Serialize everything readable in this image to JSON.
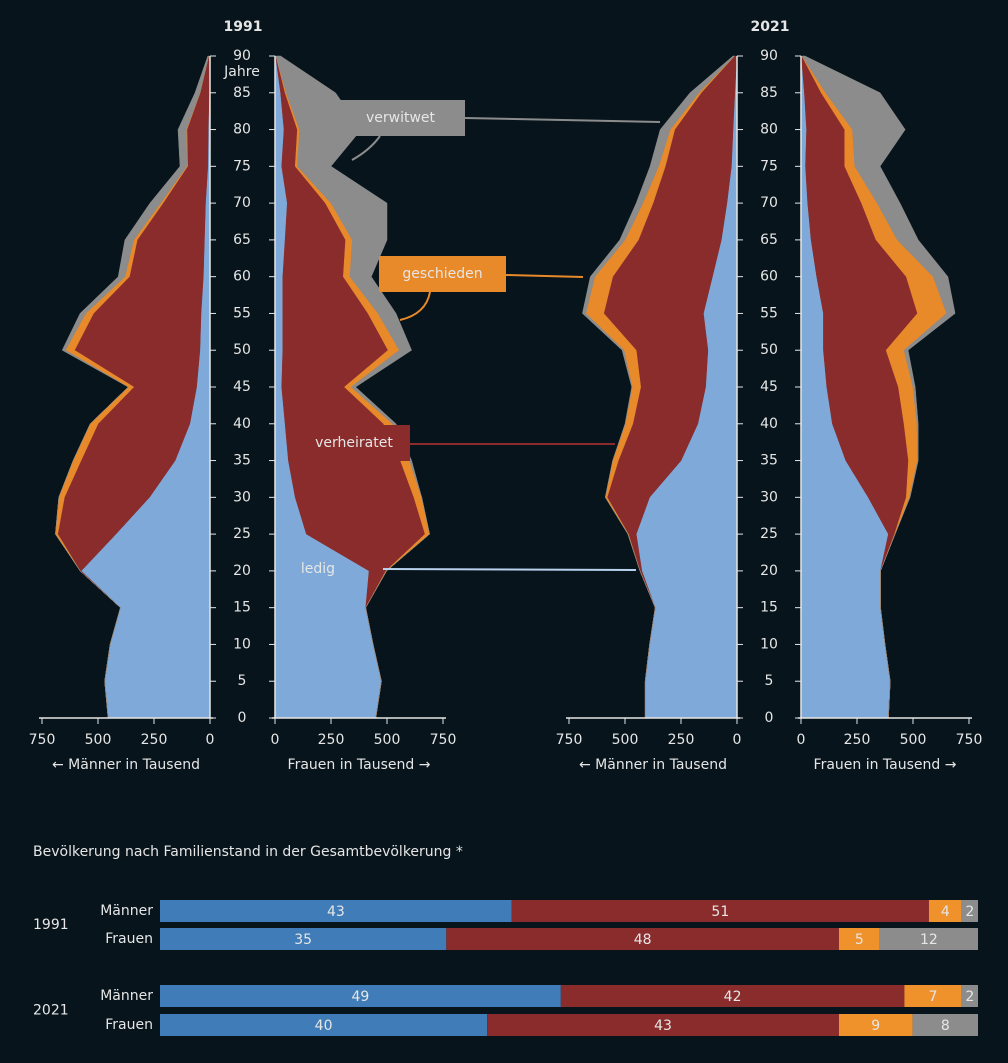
{
  "chart_data": [
    {
      "type": "pyramid",
      "title": "1991",
      "ylabel": "Jahre",
      "ages": [
        0,
        5,
        10,
        15,
        20,
        25,
        30,
        35,
        40,
        45,
        50,
        55,
        60,
        65,
        70,
        75,
        80,
        85,
        90
      ],
      "ylim": [
        0,
        90
      ],
      "yticks": [
        0,
        5,
        10,
        15,
        20,
        25,
        30,
        35,
        40,
        45,
        50,
        55,
        60,
        65,
        70,
        75,
        80,
        85,
        90
      ],
      "legend": [
        "ledig",
        "verheiratet",
        "geschieden",
        "verwitwet"
      ],
      "men": {
        "xlabel": "← Männer in Tausend",
        "xlim": [
          0,
          750
        ],
        "xticks": [
          750,
          500,
          250,
          0
        ],
        "series": [
          {
            "color": "#7fa9d9",
            "values": [
              455,
              470,
              446,
              400,
              575,
              420,
              270,
              156,
              90,
              60,
              45,
              40,
              30,
              25,
              20,
              10,
              8,
              4,
              1
            ]
          },
          {
            "color": "#8a2c2c",
            "values": [
              0,
              0,
              0,
              0,
              5,
              260,
              380,
              420,
              410,
              280,
              560,
              480,
              330,
              300,
              190,
              90,
              95,
              40,
              5
            ]
          },
          {
            "color": "#e8892a",
            "values": [
              0,
              0,
              0,
              0,
              0,
              10,
              25,
              35,
              35,
              25,
              40,
              35,
              20,
              15,
              10,
              4,
              3,
              1,
              0
            ]
          },
          {
            "color": "#8c8c8c",
            "values": [
              0,
              0,
              0,
              0,
              0,
              0,
              0,
              0,
              0,
              0,
              15,
              25,
              30,
              40,
              48,
              30,
              37,
              22,
              4
            ]
          }
        ]
      },
      "women": {
        "xlabel": "Frauen in Tausend →",
        "xlim": [
          0,
          750
        ],
        "xticks": [
          0,
          250,
          500,
          750
        ],
        "series": [
          {
            "color": "#7fa9d9",
            "values": [
              450,
              475,
              438,
              405,
              420,
              140,
              90,
              60,
              45,
              30,
              35,
              35,
              35,
              45,
              55,
              30,
              40,
              25,
              3
            ]
          },
          {
            "color": "#8a2c2c",
            "values": [
              0,
              0,
              0,
              0,
              75,
              530,
              530,
              500,
              440,
              280,
              470,
              380,
              270,
              270,
              170,
              60,
              60,
              20,
              1
            ]
          },
          {
            "color": "#e8892a",
            "values": [
              0,
              0,
              0,
              0,
              3,
              20,
              35,
              40,
              40,
              30,
              50,
              45,
              30,
              30,
              25,
              10,
              10,
              5,
              0
            ]
          },
          {
            "color": "#8c8c8c",
            "values": [
              0,
              0,
              0,
              0,
              0,
              0,
              0,
              10,
              15,
              20,
              55,
              80,
              95,
              155,
              250,
              150,
              275,
              220,
              21
            ]
          }
        ]
      }
    },
    {
      "type": "pyramid",
      "title": "2021",
      "ages": [
        0,
        5,
        10,
        15,
        20,
        25,
        30,
        35,
        40,
        45,
        50,
        55,
        60,
        65,
        70,
        75,
        80,
        85,
        90
      ],
      "ylim": [
        0,
        90
      ],
      "yticks": [
        0,
        5,
        10,
        15,
        20,
        25,
        30,
        35,
        40,
        45,
        50,
        55,
        60,
        65,
        70,
        75,
        80,
        85,
        90
      ],
      "men": {
        "xlabel": "← Männer in Tausend",
        "xlim": [
          0,
          750
        ],
        "xticks": [
          750,
          500,
          250,
          0
        ],
        "series": [
          {
            "color": "#7fa9d9",
            "values": [
              410,
              410,
              390,
              365,
              425,
              450,
              390,
              250,
              175,
              140,
              130,
              150,
              110,
              70,
              45,
              25,
              18,
              10,
              1
            ]
          },
          {
            "color": "#8a2c2c",
            "values": [
              0,
              0,
              0,
              0,
              8,
              35,
              190,
              280,
              290,
              290,
              320,
              445,
              445,
              370,
              330,
              295,
              260,
              150,
              10
            ]
          },
          {
            "color": "#e8892a",
            "values": [
              0,
              0,
              0,
              0,
              0,
              2,
              8,
              25,
              33,
              38,
              55,
              80,
              80,
              60,
              45,
              30,
              20,
              10,
              1
            ]
          },
          {
            "color": "#8c8c8c",
            "values": [
              0,
              0,
              0,
              0,
              0,
              0,
              0,
              0,
              2,
              2,
              8,
              15,
              20,
              23,
              30,
              38,
              45,
              40,
              6
            ]
          }
        ]
      },
      "women": {
        "xlabel": "Frauen in Tausend →",
        "xlim": [
          0,
          750
        ],
        "xticks": [
          0,
          250,
          500,
          750
        ],
        "series": [
          {
            "color": "#7fa9d9",
            "values": [
              390,
              398,
              375,
              355,
              355,
              390,
              300,
              200,
              140,
              115,
              100,
              100,
              70,
              45,
              30,
              20,
              25,
              15,
              2
            ]
          },
          {
            "color": "#8a2c2c",
            "values": [
              0,
              0,
              0,
              0,
              0,
              28,
              170,
              280,
              320,
              320,
              280,
              420,
              400,
              290,
              240,
              175,
              170,
              75,
              2
            ]
          },
          {
            "color": "#e8892a",
            "values": [
              0,
              0,
              0,
              0,
              0,
              2,
              15,
              40,
              58,
              65,
              80,
              130,
              120,
              95,
              70,
              45,
              35,
              20,
              1
            ]
          },
          {
            "color": "#8c8c8c",
            "values": [
              0,
              0,
              0,
              0,
              0,
              0,
              2,
              3,
              5,
              10,
              18,
              38,
              66,
              93,
              102,
              113,
              235,
              243,
              13
            ]
          }
        ]
      }
    },
    {
      "type": "bar",
      "title": "Bevölkerung nach Familienstand in der Gesamtbevölkerung *",
      "orientation": "horizontal",
      "stacked": true,
      "xlim": [
        0,
        100
      ],
      "colors": [
        "#3f7cb8",
        "#8a2c2c",
        "#f0922b",
        "#8c8c8c"
      ],
      "groups": [
        {
          "label": "1991",
          "rows": [
            {
              "label": "Männer",
              "values": [
                43,
                51,
                4,
                2
              ]
            },
            {
              "label": "Frauen",
              "values": [
                35,
                48,
                5,
                12
              ]
            }
          ]
        },
        {
          "label": "2021",
          "rows": [
            {
              "label": "Männer",
              "values": [
                49,
                42,
                7,
                2
              ]
            },
            {
              "label": "Frauen",
              "values": [
                40,
                43,
                9,
                8
              ]
            }
          ]
        }
      ]
    }
  ]
}
